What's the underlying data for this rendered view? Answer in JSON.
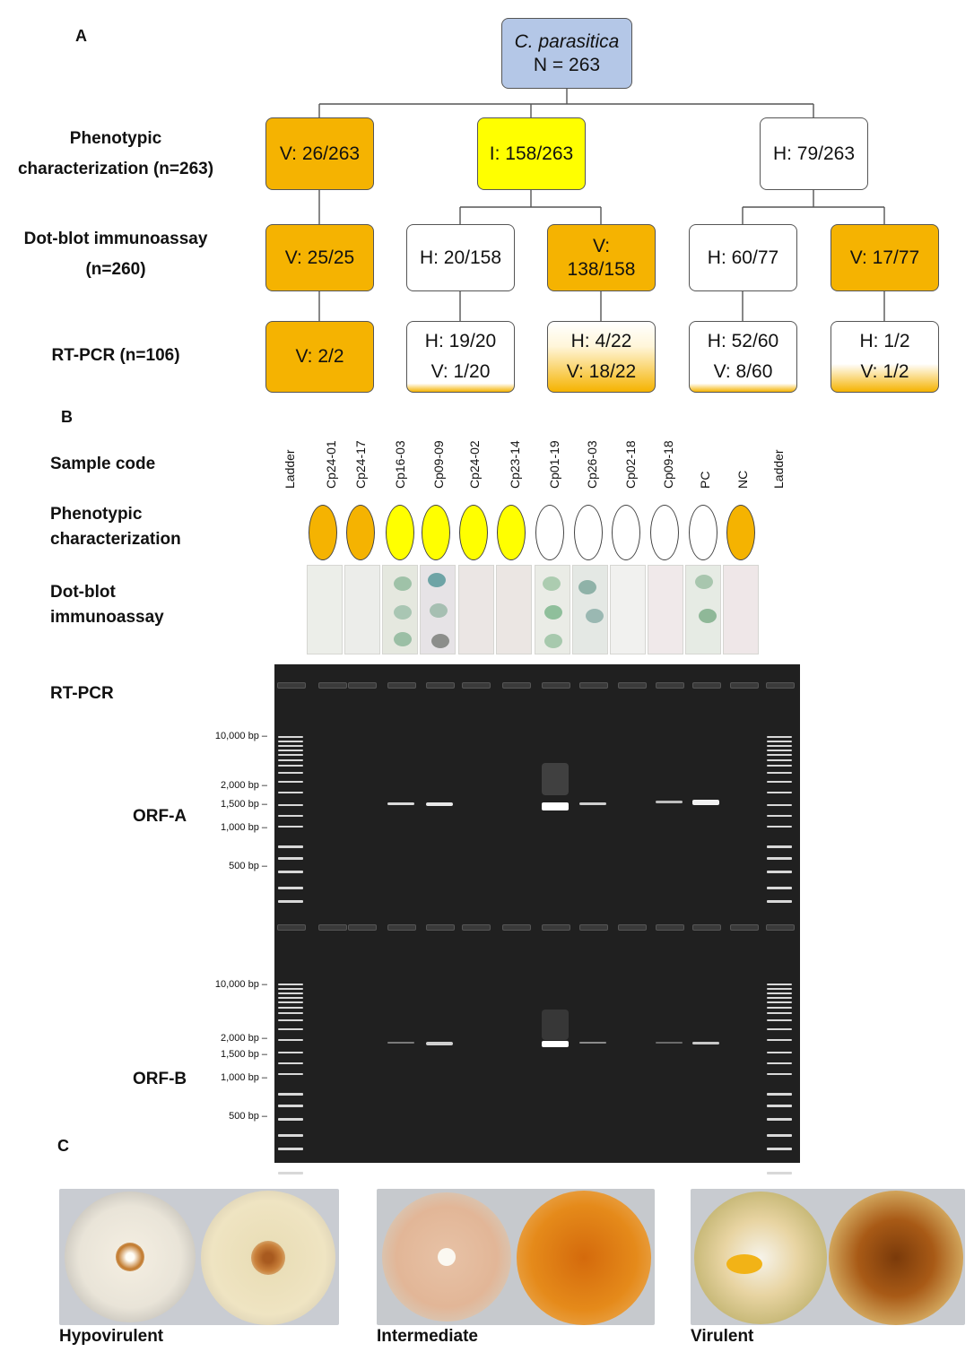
{
  "panel_a": {
    "letter": "A",
    "row_labels": {
      "phenotypic_line1": "Phenotypic",
      "phenotypic_line2": "characterization (n=263)",
      "dotblot_line1": "Dot-blot immunoassay",
      "dotblot_line2": "(n=260)",
      "rtpcr": "RT-PCR (n=106)"
    },
    "root": {
      "species": "C. parasitica",
      "count": "N = 263"
    },
    "phenotypic": {
      "virulent": "V: 26/263",
      "intermediate": "I: 158/263",
      "hypovirulent": "H: 79/263"
    },
    "dotblot": {
      "v_branch": "V: 25/25",
      "i_branch_h": "H: 20/158",
      "i_branch_v_line1": "V:",
      "i_branch_v_line2": "138/158",
      "h_branch_h": "H: 60/77",
      "h_branch_v": "V: 17/77"
    },
    "rtpcr": {
      "v_branch": "V: 2/2",
      "node2_l1": "H: 19/20",
      "node2_l2": "V: 1/20",
      "node3_l1": "H: 4/22",
      "node3_l2": "V: 18/22",
      "node4_l1": "H: 52/60",
      "node4_l2": "V: 8/60",
      "node5_l1": "H: 1/2",
      "node5_l2": "V: 1/2"
    },
    "colors": {
      "virulent": "#f5b301",
      "intermediate": "#ffff00",
      "hypovirulent": "#ffffff",
      "root": "#b4c7e7"
    }
  },
  "panel_b": {
    "letter": "B",
    "labels": {
      "sample_code": "Sample code",
      "phenotypic_line1": "Phenotypic",
      "phenotypic_line2": "characterization",
      "dotblot_line1": "Dot-blot",
      "dotblot_line2": "immunoassay",
      "rtpcr": "RT-PCR",
      "orf_a": "ORF-A",
      "orf_b": "ORF-B"
    },
    "lanes": [
      "Ladder",
      "Cp24-01",
      "Cp24-17",
      "Cp16-03",
      "Cp09-09",
      "Cp24-02",
      "Cp23-14",
      "Cp01-19",
      "Cp26-03",
      "Cp02-18",
      "Cp09-18",
      "PC",
      "NC",
      "Ladder"
    ],
    "phenotype_colors": [
      "#f5b301",
      "#f5b301",
      "#ffff00",
      "#ffff00",
      "#ffff00",
      "#ffff00",
      "#ffffff",
      "#ffffff",
      "#ffffff",
      "#ffffff",
      "#ffffff",
      "#f5b301"
    ],
    "ladder_marks": [
      "10,000 bp –",
      "2,000 bp –",
      "1,500 bp –",
      "1,000 bp –",
      "500 bp –"
    ]
  },
  "panel_c": {
    "letter": "C",
    "labels": {
      "hypovirulent": "Hypovirulent",
      "intermediate": "Intermediate",
      "virulent": "Virulent"
    }
  }
}
